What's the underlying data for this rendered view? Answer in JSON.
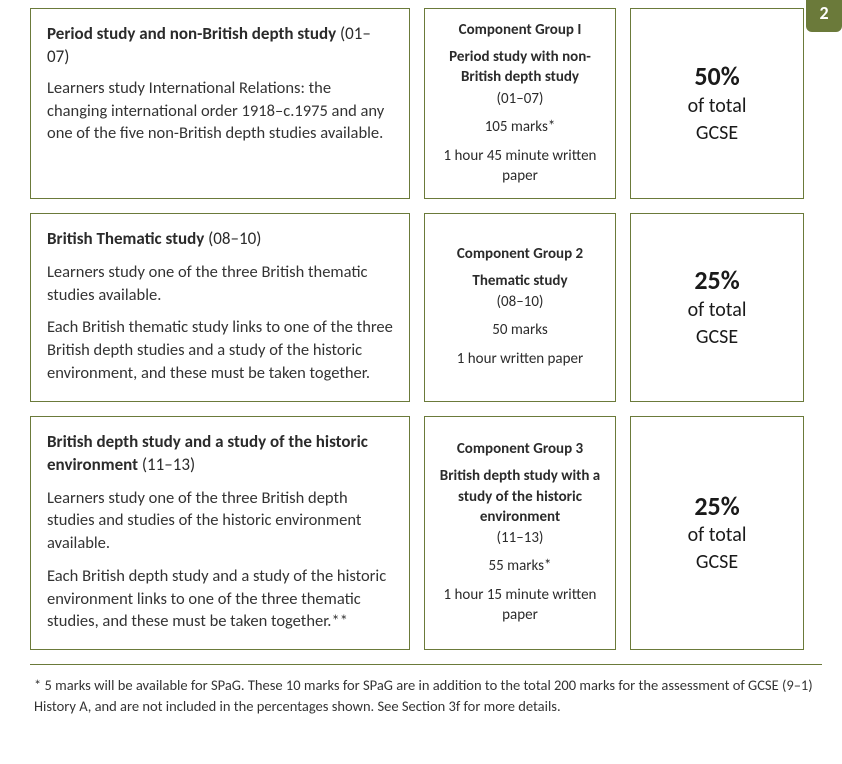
{
  "corner_label": "2",
  "border_color": "#6b7a3a",
  "corner_bg": "#6b7a3a",
  "row1": {
    "desc": {
      "title_bold": "Period study and non-British depth study",
      "title_reg": " (01–07)",
      "para1": "Learners study International Relations: the changing international order 1918–c.1975 and any one of the five non-British depth studies available."
    },
    "comp": {
      "group": "Component Group I",
      "subtitle": "Period study with non-British depth study",
      "code": "(01–07)",
      "marks": "105 marks*",
      "duration": "1 hour 45 minute written paper"
    },
    "pct": {
      "big": "50%",
      "l1": "of total",
      "l2": "GCSE"
    }
  },
  "row2": {
    "desc": {
      "title_bold": "British Thematic study",
      "title_reg": " (08–10)",
      "para1": "Learners study one of the three British thematic studies available.",
      "para2": "Each British thematic study links to one of the three British depth studies and a study of the historic environment, and these must be taken together."
    },
    "comp": {
      "group": "Component Group 2",
      "subtitle": "Thematic study",
      "code": "(08–10)",
      "marks": "50 marks",
      "duration": "1 hour written paper"
    },
    "pct": {
      "big": "25%",
      "l1": "of total",
      "l2": "GCSE"
    }
  },
  "row3": {
    "desc": {
      "title_bold": "British depth study and a study of the historic environment",
      "title_reg": " (11–13)",
      "para1": "Learners study one of the three British depth studies and studies of the historic environment available.",
      "para2": "Each British depth study and a study of the historic environment links to one of the three thematic studies, and these must be taken together.**"
    },
    "comp": {
      "group": "Component Group 3",
      "subtitle": "British depth study with a study of the historic environment",
      "code": "(11–13)",
      "marks": "55 marks*",
      "duration": "1 hour 15 minute written paper"
    },
    "pct": {
      "big": "25%",
      "l1": "of total",
      "l2": "GCSE"
    }
  },
  "footnote": "* 5 marks will be available for SPaG. These 10 marks for SPaG are in addition to the total 200 marks for the assessment of GCSE (9–1) History A, and are not included in the percentages shown. See Section 3f for more details."
}
